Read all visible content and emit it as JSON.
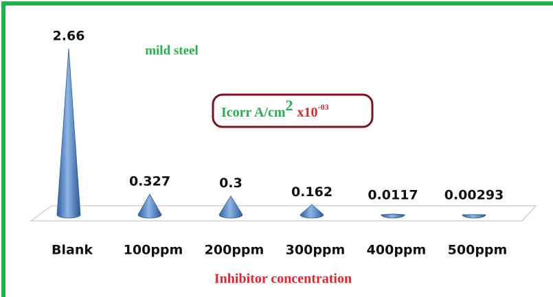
{
  "chart_data": {
    "type": "cone",
    "categories": [
      "Blank",
      "100ppm",
      "200ppm",
      "300ppm",
      "400ppm",
      "500ppm"
    ],
    "values": [
      2.66,
      0.327,
      0.3,
      0.162,
      0.0117,
      0.00293
    ],
    "color": "#4f81bd",
    "annotation": "mild steel",
    "legend": {
      "text": "Icorr A/cm",
      "sup": "2",
      "suffix": "x10",
      "suffix_sup": "-03"
    },
    "xlabel": "Inhibitor concentration"
  }
}
